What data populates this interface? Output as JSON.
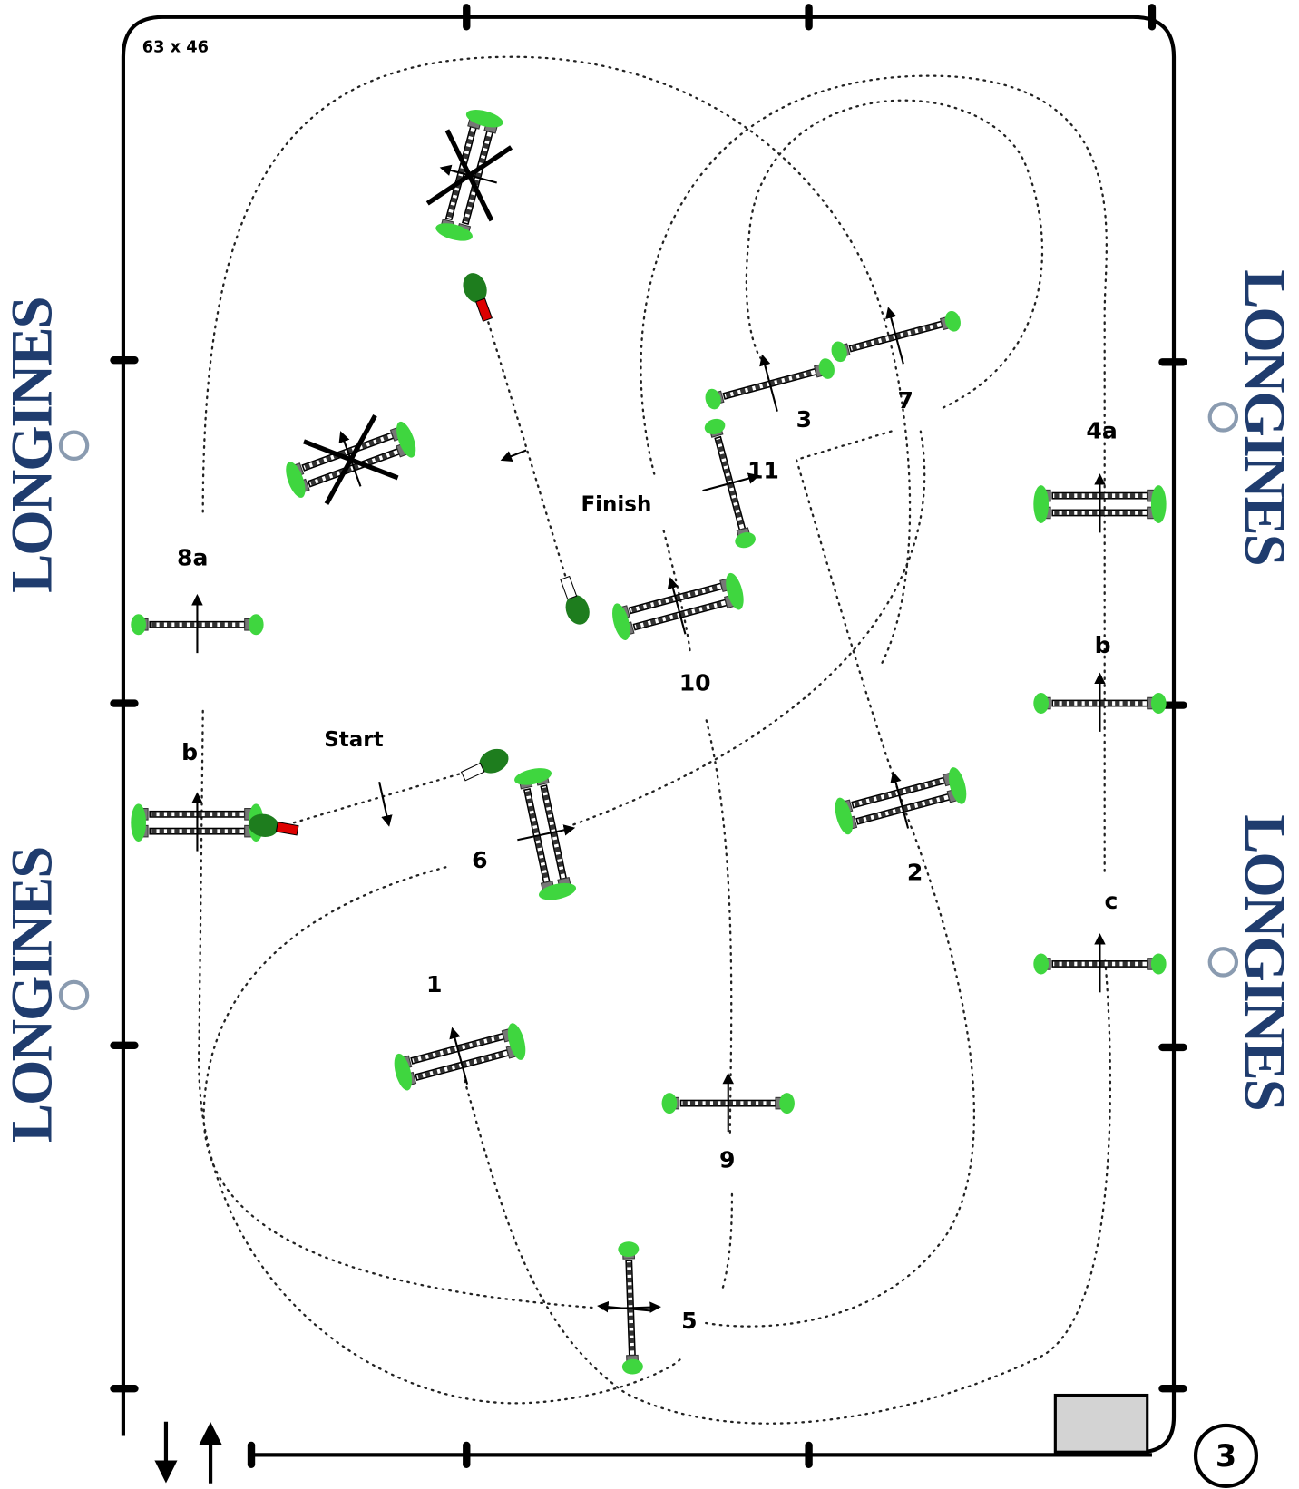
{
  "header": {
    "dimensions": "63 x 46",
    "course_number": "3"
  },
  "logos": [
    "LONGINES",
    "LONGINES",
    "LONGINES",
    "LONGINES"
  ],
  "markers": {
    "start": "Start",
    "finish": "Finish"
  },
  "obstacles": [
    "1",
    "2",
    "3",
    "4a",
    "b",
    "c",
    "5",
    "6",
    "7",
    "8a",
    "b",
    "9",
    "10",
    "11"
  ]
}
